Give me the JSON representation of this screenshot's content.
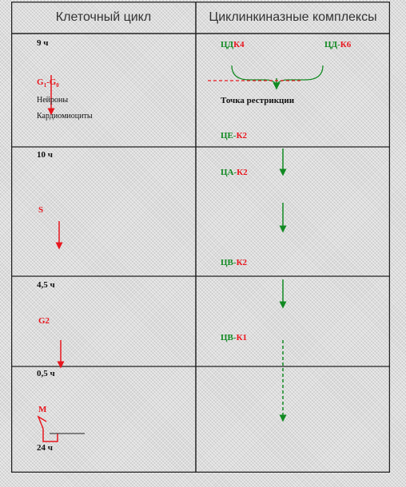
{
  "header": {
    "col1": "Клеточный цикл",
    "col2": "Циклинкиназные комплексы"
  },
  "cycle": {
    "t9": "9 ч",
    "g1_main": "G",
    "g1_sub": "1",
    "g0_dash": "-G",
    "g0_sub": "0",
    "neurons": "Нейроны",
    "cardio": "Кардиомиоциты",
    "t10": "10 ч",
    "s": "S",
    "t45": "4,5 ч",
    "g2": "G2",
    "t05": "0,5 ч",
    "m": "M",
    "t24": "24 ч"
  },
  "complexes": {
    "cdk4_c": "ЦД",
    "cdk4_k": "К4",
    "cdk6_c": "ЦД-",
    "cdk6_k": "К6",
    "restriction": "Точка рестрикции",
    "cek2_c": "ЦЕ-",
    "cek2_k": "К2",
    "cak2_c": "ЦА-",
    "cak2_k": "К2",
    "cbk2_c": "ЦВ-",
    "cbk2_k": "К2",
    "cbk1_c": "ЦВ-",
    "cbk1_k": "К1"
  },
  "colors": {
    "red": "#e8161e",
    "green": "#118a22",
    "border": "#222222"
  }
}
